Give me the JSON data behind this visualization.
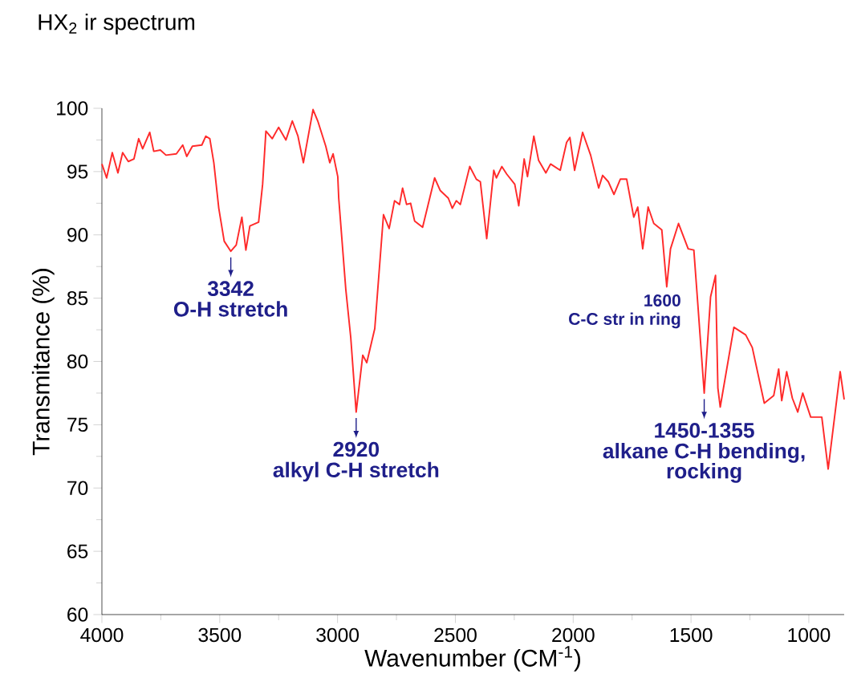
{
  "chart_data": {
    "type": "line",
    "title": "HX$_{2}$ ir spectrum",
    "xlabel": "Wavenumber (CM$^{-1}$)",
    "ylabel": "Transmitance (%)",
    "xlim": [
      4000,
      850
    ],
    "ylim": [
      60,
      100
    ],
    "xticks": [
      4000,
      3500,
      3000,
      2500,
      2000,
      1500,
      1000
    ],
    "yticks": [
      60,
      65,
      70,
      75,
      80,
      85,
      90,
      95,
      100
    ],
    "color": "#ff2a2a",
    "x": [
      4000,
      3980,
      3956,
      3932,
      3912,
      3888,
      3864,
      3844,
      3827,
      3797,
      3780,
      3752,
      3728,
      3684,
      3657,
      3640,
      3616,
      3576,
      3559,
      3542,
      3525,
      3504,
      3481,
      3453,
      3430,
      3406,
      3389,
      3372,
      3335,
      3318,
      3304,
      3277,
      3250,
      3219,
      3192,
      3168,
      3145,
      3104,
      3084,
      3050,
      3033,
      3019,
      2999,
      2995,
      2965,
      2944,
      2921,
      2893,
      2876,
      2842,
      2805,
      2781,
      2758,
      2737,
      2724,
      2707,
      2690,
      2673,
      2639,
      2588,
      2564,
      2530,
      2513,
      2496,
      2479,
      2439,
      2411,
      2394,
      2367,
      2337,
      2326,
      2303,
      2282,
      2248,
      2231,
      2208,
      2194,
      2167,
      2147,
      2116,
      2096,
      2055,
      2028,
      2014,
      1994,
      1960,
      1926,
      1892,
      1875,
      1851,
      1827,
      1800,
      1773,
      1743,
      1726,
      1705,
      1682,
      1658,
      1624,
      1603,
      1587,
      1553,
      1512,
      1488,
      1471,
      1444,
      1417,
      1396,
      1386,
      1376,
      1318,
      1268,
      1240,
      1189,
      1149,
      1128,
      1115,
      1094,
      1070,
      1047,
      1026,
      992,
      945,
      918,
      867,
      850
    ],
    "values": [
      95.6,
      94.5,
      96.5,
      94.9,
      96.5,
      95.8,
      96.0,
      97.6,
      96.8,
      98.1,
      96.6,
      96.7,
      96.3,
      96.4,
      97.1,
      96.2,
      97.0,
      97.1,
      97.8,
      97.6,
      95.7,
      92.1,
      89.5,
      88.7,
      89.2,
      91.4,
      88.8,
      90.7,
      91.0,
      94.0,
      98.2,
      97.6,
      98.5,
      97.5,
      99.0,
      97.8,
      95.7,
      99.9,
      99.0,
      97.0,
      95.7,
      96.4,
      94.6,
      92.9,
      85.7,
      81.9,
      76.0,
      80.5,
      79.9,
      82.6,
      91.6,
      90.5,
      92.7,
      92.4,
      93.7,
      92.4,
      92.5,
      91.1,
      90.6,
      94.5,
      93.5,
      92.9,
      92.1,
      92.7,
      92.4,
      95.4,
      94.4,
      94.2,
      89.7,
      95.1,
      94.5,
      95.4,
      94.8,
      94.0,
      92.3,
      96.0,
      94.6,
      97.8,
      95.9,
      94.9,
      95.6,
      95.1,
      97.3,
      97.7,
      95.1,
      98.1,
      96.3,
      93.7,
      94.7,
      94.2,
      93.2,
      94.4,
      94.4,
      91.4,
      92.2,
      88.9,
      92.2,
      90.9,
      90.4,
      85.9,
      88.9,
      90.9,
      88.9,
      88.8,
      84.5,
      77.5,
      85.1,
      86.8,
      77.9,
      76.4,
      82.7,
      82.1,
      81.1,
      76.7,
      77.3,
      79.4,
      76.9,
      79.2,
      77.1,
      76.0,
      77.5,
      75.6,
      75.6,
      71.5,
      79.2,
      77.0
    ],
    "annotations": [
      {
        "text": "3342",
        "x": 3453,
        "y": 88.7
      },
      "O-H stretch",
      {
        "text": "2920",
        "x": 2921,
        "y": 76.0
      },
      "alkyl C-H stretch",
      {
        "text": "1600",
        "x": 1603,
        "y": 85.9
      },
      "C-C str in ring",
      {
        "text": "1450-1355",
        "x": 1444,
        "y": 77.5
      },
      "alkane C-H bending,",
      "rocking"
    ]
  }
}
